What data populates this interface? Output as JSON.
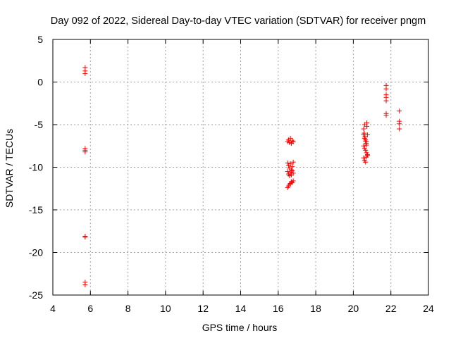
{
  "chart_data": {
    "type": "scatter",
    "title": "Day 092 of 2022, Sidereal Day-to-day VTEC variation (SDTVAR) for receiver pngm",
    "xlabel": "GPS time / hours",
    "ylabel": "SDTVAR / TECUs",
    "xlim": [
      4,
      24
    ],
    "ylim": [
      -25,
      5
    ],
    "xticks": [
      4,
      6,
      8,
      10,
      12,
      14,
      16,
      18,
      20,
      22,
      24
    ],
    "yticks": [
      5,
      0,
      -5,
      -10,
      -15,
      -20,
      -25
    ],
    "grid": true,
    "marker": "+",
    "series": [
      {
        "name": "SDTVAR",
        "color": "#ff0000",
        "points": [
          [
            5.72,
            1.7
          ],
          [
            5.72,
            1.3
          ],
          [
            5.72,
            1.0
          ],
          [
            5.72,
            -7.8
          ],
          [
            5.72,
            -8.0
          ],
          [
            5.72,
            -8.2
          ],
          [
            5.72,
            -18.1
          ],
          [
            5.72,
            -18.2
          ],
          [
            5.72,
            -23.5
          ],
          [
            5.72,
            -23.8
          ],
          [
            16.5,
            -7.0
          ],
          [
            16.55,
            -6.8
          ],
          [
            16.6,
            -7.1
          ],
          [
            16.65,
            -6.6
          ],
          [
            16.7,
            -7.2
          ],
          [
            16.75,
            -6.9
          ],
          [
            16.8,
            -7.0
          ],
          [
            16.5,
            -9.5
          ],
          [
            16.55,
            -9.8
          ],
          [
            16.6,
            -10.1
          ],
          [
            16.65,
            -9.6
          ],
          [
            16.7,
            -10.3
          ],
          [
            16.75,
            -9.9
          ],
          [
            16.8,
            -9.4
          ],
          [
            16.5,
            -10.5
          ],
          [
            16.55,
            -10.8
          ],
          [
            16.6,
            -11.0
          ],
          [
            16.65,
            -10.6
          ],
          [
            16.7,
            -10.9
          ],
          [
            16.75,
            -10.4
          ],
          [
            16.8,
            -10.7
          ],
          [
            16.5,
            -12.4
          ],
          [
            16.55,
            -12.2
          ],
          [
            16.6,
            -12.0
          ],
          [
            16.65,
            -11.9
          ],
          [
            16.7,
            -11.7
          ],
          [
            16.75,
            -11.8
          ],
          [
            16.8,
            -11.6
          ],
          [
            20.55,
            -5.5
          ],
          [
            20.58,
            -6.0
          ],
          [
            20.62,
            -6.4
          ],
          [
            20.65,
            -6.8
          ],
          [
            20.68,
            -7.2
          ],
          [
            20.72,
            -5.2
          ],
          [
            20.55,
            -7.5
          ],
          [
            20.6,
            -7.8
          ],
          [
            20.65,
            -8.0
          ],
          [
            20.7,
            -8.3
          ],
          [
            20.75,
            -8.6
          ],
          [
            20.6,
            -5.0
          ],
          [
            20.55,
            -8.9
          ],
          [
            20.6,
            -9.2
          ],
          [
            20.65,
            -9.4
          ],
          [
            20.7,
            -8.8
          ],
          [
            20.75,
            -8.5
          ],
          [
            20.7,
            -7.0
          ],
          [
            20.55,
            -6.2
          ],
          [
            20.6,
            -6.6
          ],
          [
            20.65,
            -7.0
          ],
          [
            20.7,
            -7.4
          ],
          [
            20.75,
            -6.2
          ],
          [
            20.72,
            -4.8
          ],
          [
            21.75,
            -0.4
          ],
          [
            21.75,
            -0.8
          ],
          [
            21.75,
            -1.5
          ],
          [
            21.75,
            -1.8
          ],
          [
            21.75,
            -2.2
          ],
          [
            21.75,
            -3.7
          ],
          [
            21.75,
            -3.9
          ],
          [
            22.45,
            -3.4
          ],
          [
            22.45,
            -4.6
          ],
          [
            22.45,
            -4.9
          ],
          [
            22.45,
            -5.5
          ]
        ]
      }
    ]
  }
}
